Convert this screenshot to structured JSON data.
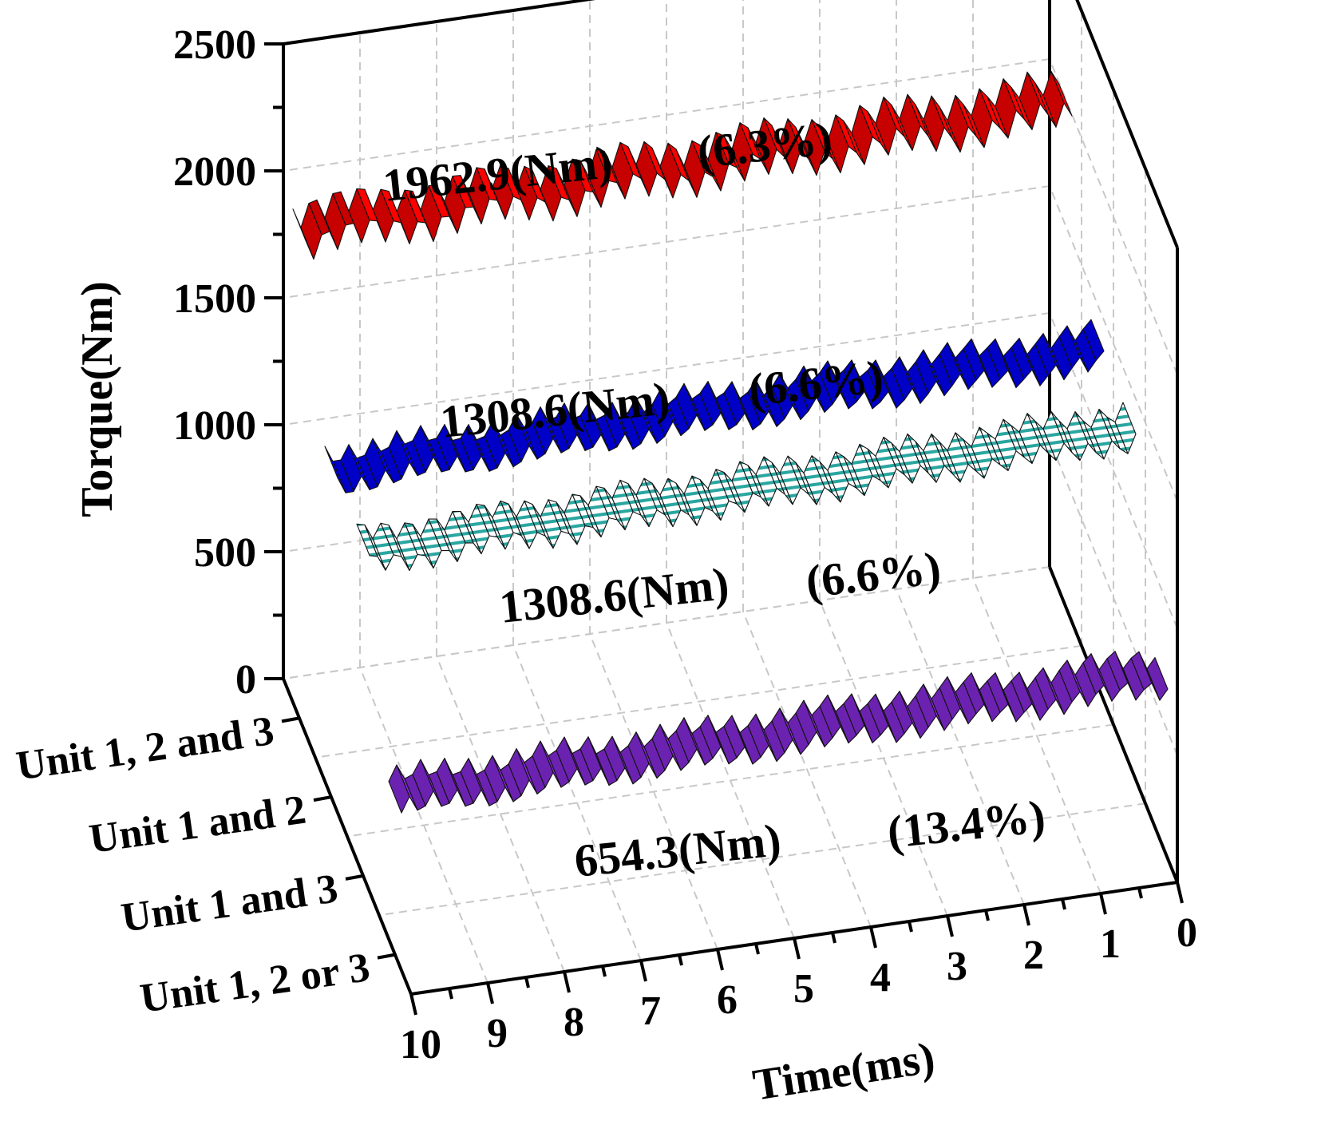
{
  "chart_data": {
    "type": "line",
    "subtype": "3d-ribbon",
    "title": "",
    "zlabel": "Torque(Nm)",
    "xlabel": "Time(ms)",
    "ylabel": "",
    "zlim": [
      0,
      2500
    ],
    "z_ticks": [
      "0",
      "500",
      "1000",
      "1500",
      "2000",
      "2500"
    ],
    "xlim": [
      0,
      10
    ],
    "x_ticks": [
      "0",
      "1",
      "2",
      "3",
      "4",
      "5",
      "6",
      "7",
      "8",
      "9",
      "10"
    ],
    "categories": [
      "Unit 1, 2 and 3",
      "Unit 1 and 2",
      "Unit 1 and 3",
      "Unit 1, 2 or 3"
    ],
    "grid": true,
    "series": [
      {
        "name": "Unit 1, 2 and 3",
        "color": "#ff0000",
        "mean": 1962.9,
        "ripple_pct": 6.3,
        "annotation_value": "1962.9(Nm)",
        "annotation_pct": "(6.3%)",
        "fill_style": "solid"
      },
      {
        "name": "Unit 1 and 2",
        "color": "#0000ff",
        "mean": 1308.6,
        "ripple_pct": 6.6,
        "annotation_value": "1308.6(Nm)",
        "annotation_pct": "(6.6%)",
        "fill_style": "solid"
      },
      {
        "name": "Unit 1 and 3",
        "color": "#2aa6a0",
        "mean": 1308.6,
        "ripple_pct": 6.6,
        "annotation_value": "1308.6(Nm)",
        "annotation_pct": "(6.6%)",
        "fill_style": "hatched"
      },
      {
        "name": "Unit 1, 2 or 3",
        "color": "#8a2be2",
        "mean": 654.3,
        "ripple_pct": 13.4,
        "annotation_value": "654.3(Nm)",
        "annotation_pct": "(13.4%)",
        "fill_style": "solid"
      }
    ]
  }
}
